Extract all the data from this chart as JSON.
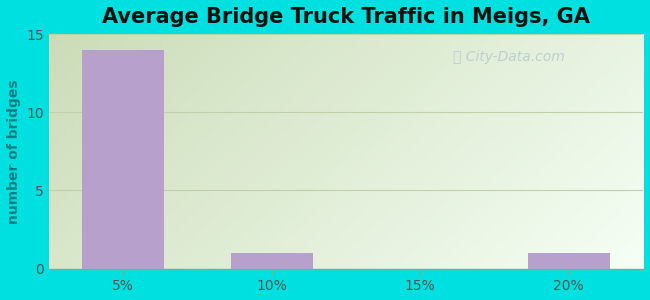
{
  "title": "Average Bridge Truck Traffic in Meigs, GA",
  "ylabel": "number of bridges",
  "categories": [
    "5%",
    "10%",
    "15%",
    "20%"
  ],
  "values": [
    14,
    1,
    0,
    1
  ],
  "bar_color": "#b8a0cc",
  "bar_width": 0.55,
  "ylim": [
    0,
    15
  ],
  "yticks": [
    0,
    5,
    10,
    15
  ],
  "figure_bg": "#00e0e0",
  "plot_bg_topleft": "#ccdcb8",
  "plot_bg_bottomright": "#f0faf0",
  "grid_color": "#c0d0a8",
  "title_fontsize": 15,
  "ylabel_color": "#008080",
  "tick_color": "#555555",
  "watermark_text": "City-Data.com",
  "watermark_color": "#b0c4cc",
  "watermark_alpha": 0.75
}
